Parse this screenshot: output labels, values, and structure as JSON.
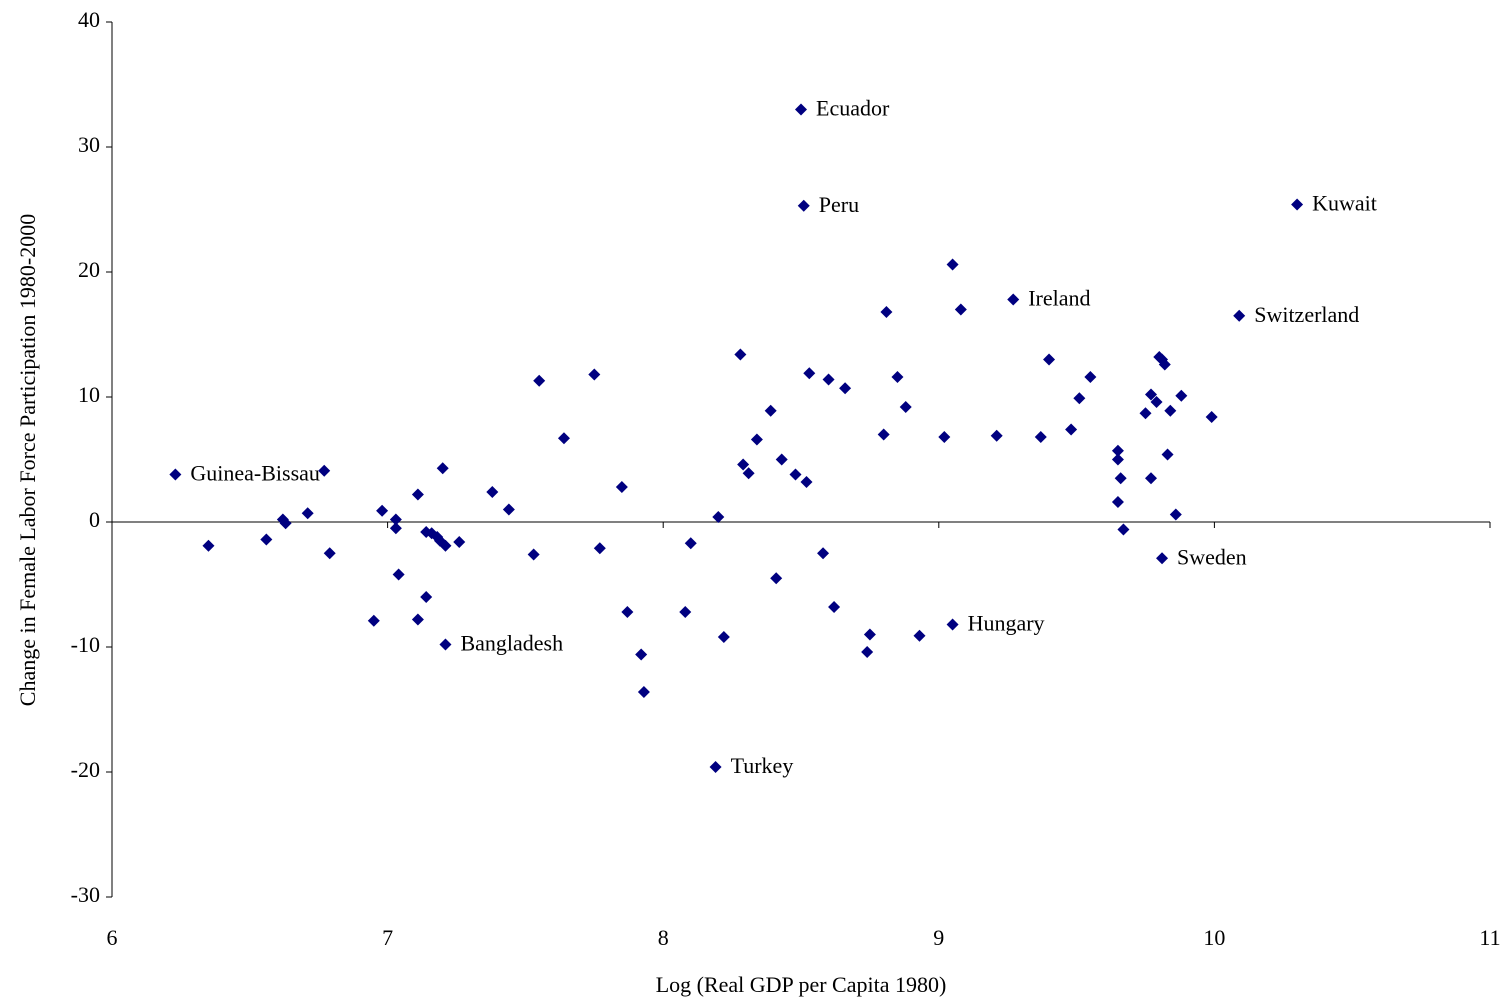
{
  "chart_data": {
    "type": "scatter",
    "xlabel": "Log (Real GDP per Capita 1980)",
    "ylabel": "Change in Female Labor Force Participation 1980-2000",
    "xlim": [
      6,
      11
    ],
    "ylim": [
      -30,
      40
    ],
    "xticks": [
      6,
      7,
      8,
      9,
      10,
      11
    ],
    "yticks": [
      -30,
      -20,
      -10,
      0,
      10,
      20,
      30,
      40
    ],
    "grid": false,
    "series": [
      {
        "color": "#000080",
        "x": [
          6.23,
          6.35,
          6.56,
          6.62,
          6.63,
          6.71,
          6.77,
          6.79,
          6.95,
          6.98,
          7.03,
          7.03,
          7.04,
          7.11,
          7.11,
          7.14,
          7.14,
          7.16,
          7.18,
          7.19,
          7.21,
          7.2,
          7.21,
          7.26,
          7.38,
          7.44,
          7.53,
          7.55,
          7.64,
          7.75,
          7.77,
          7.85,
          7.87,
          7.92,
          7.93,
          8.08,
          8.1,
          8.19,
          8.2,
          8.22,
          8.28,
          8.29,
          8.31,
          8.34,
          8.39,
          8.41,
          8.43,
          8.48,
          8.5,
          8.51,
          8.52,
          8.53,
          8.58,
          8.6,
          8.62,
          8.66,
          8.74,
          8.75,
          8.8,
          8.81,
          8.85,
          8.88,
          8.93,
          9.02,
          9.05,
          9.05,
          9.08,
          9.21,
          9.27,
          9.37,
          9.4,
          9.48,
          9.51,
          9.55,
          9.65,
          9.65,
          9.65,
          9.66,
          9.67,
          9.75,
          9.77,
          9.77,
          9.79,
          9.8,
          9.81,
          9.82,
          9.81,
          9.83,
          9.84,
          9.86,
          9.88,
          9.99,
          10.09,
          10.3
        ],
        "values": [
          3.8,
          -1.9,
          -1.4,
          0.2,
          -0.1,
          0.7,
          4.1,
          -2.5,
          -7.9,
          0.9,
          0.2,
          -0.5,
          -4.2,
          2.2,
          -7.8,
          -0.8,
          -6.0,
          -0.9,
          -1.2,
          -1.5,
          -1.9,
          4.3,
          -9.8,
          -1.6,
          2.4,
          1.0,
          -2.6,
          11.3,
          6.7,
          11.8,
          -2.1,
          2.8,
          -7.2,
          -10.6,
          -13.6,
          -7.2,
          -1.7,
          -19.6,
          0.4,
          -9.2,
          13.4,
          4.6,
          3.9,
          6.6,
          8.9,
          -4.5,
          5.0,
          3.8,
          33.0,
          25.3,
          3.2,
          11.9,
          -2.5,
          11.4,
          -6.8,
          10.7,
          -10.4,
          -9.0,
          7.0,
          16.8,
          11.6,
          9.2,
          -9.1,
          6.8,
          20.6,
          -8.2,
          17.0,
          6.9,
          17.8,
          6.8,
          13.0,
          7.4,
          9.9,
          11.6,
          5.7,
          5.0,
          1.6,
          3.5,
          -0.6,
          8.7,
          3.5,
          10.2,
          9.6,
          13.2,
          13.0,
          12.6,
          -2.9,
          5.4,
          8.9,
          0.6,
          10.1,
          8.4,
          16.5,
          25.4
        ],
        "point_labels": [
          "Guinea-Bissau",
          null,
          null,
          null,
          null,
          null,
          null,
          null,
          null,
          null,
          null,
          null,
          null,
          null,
          null,
          null,
          null,
          null,
          null,
          null,
          null,
          null,
          "Bangladesh",
          null,
          null,
          null,
          null,
          null,
          null,
          null,
          null,
          null,
          null,
          null,
          null,
          null,
          null,
          "Turkey",
          null,
          null,
          null,
          null,
          null,
          null,
          null,
          null,
          null,
          null,
          "Ecuador",
          "Peru",
          null,
          null,
          null,
          null,
          null,
          null,
          null,
          null,
          null,
          null,
          null,
          null,
          null,
          null,
          null,
          "Hungary",
          null,
          null,
          "Ireland",
          null,
          null,
          null,
          null,
          null,
          null,
          null,
          null,
          null,
          null,
          null,
          null,
          null,
          null,
          null,
          null,
          null,
          "Sweden",
          null,
          null,
          null,
          null,
          null,
          "Switzerland",
          "Kuwait"
        ]
      }
    ]
  }
}
